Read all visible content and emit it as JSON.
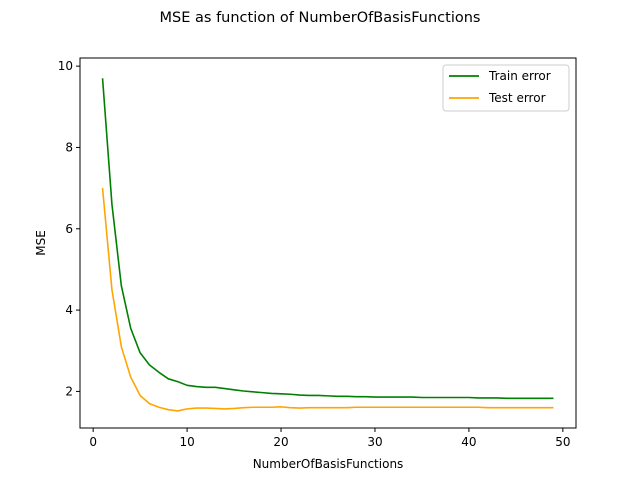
{
  "chart_data": {
    "type": "line",
    "title": "MSE as function of NumberOfBasisFunctions",
    "xlabel": "NumberOfBasisFunctions",
    "ylabel": "MSE",
    "xlim": [
      -1.4,
      51.4
    ],
    "ylim": [
      1.1,
      10.2
    ],
    "xticks": [
      0,
      10,
      20,
      30,
      40,
      50
    ],
    "yticks": [
      2,
      4,
      6,
      8,
      10
    ],
    "grid": false,
    "legend_position": "top-right",
    "x": [
      1,
      2,
      3,
      4,
      5,
      6,
      7,
      8,
      9,
      10,
      11,
      12,
      13,
      14,
      15,
      16,
      17,
      18,
      19,
      20,
      21,
      22,
      23,
      24,
      25,
      26,
      27,
      28,
      29,
      30,
      31,
      32,
      33,
      34,
      35,
      36,
      37,
      38,
      39,
      40,
      41,
      42,
      43,
      44,
      45,
      46,
      47,
      48,
      49
    ],
    "series": [
      {
        "name": "Train error",
        "color": "#008000",
        "values": [
          9.7,
          6.6,
          4.6,
          3.55,
          2.95,
          2.65,
          2.47,
          2.31,
          2.24,
          2.15,
          2.12,
          2.1,
          2.1,
          2.07,
          2.04,
          2.01,
          1.99,
          1.97,
          1.95,
          1.94,
          1.93,
          1.91,
          1.9,
          1.9,
          1.89,
          1.88,
          1.88,
          1.87,
          1.87,
          1.86,
          1.86,
          1.86,
          1.86,
          1.86,
          1.85,
          1.85,
          1.85,
          1.85,
          1.85,
          1.85,
          1.84,
          1.84,
          1.84,
          1.83,
          1.83,
          1.83,
          1.83,
          1.83,
          1.83
        ]
      },
      {
        "name": "Test error",
        "color": "#FFA500",
        "values": [
          7.0,
          4.5,
          3.1,
          2.35,
          1.9,
          1.7,
          1.61,
          1.55,
          1.52,
          1.57,
          1.59,
          1.59,
          1.58,
          1.57,
          1.58,
          1.6,
          1.61,
          1.61,
          1.61,
          1.62,
          1.6,
          1.59,
          1.6,
          1.6,
          1.6,
          1.6,
          1.6,
          1.61,
          1.61,
          1.61,
          1.61,
          1.61,
          1.61,
          1.61,
          1.61,
          1.61,
          1.61,
          1.61,
          1.61,
          1.61,
          1.61,
          1.6,
          1.6,
          1.6,
          1.6,
          1.6,
          1.6,
          1.6,
          1.6
        ]
      }
    ]
  }
}
